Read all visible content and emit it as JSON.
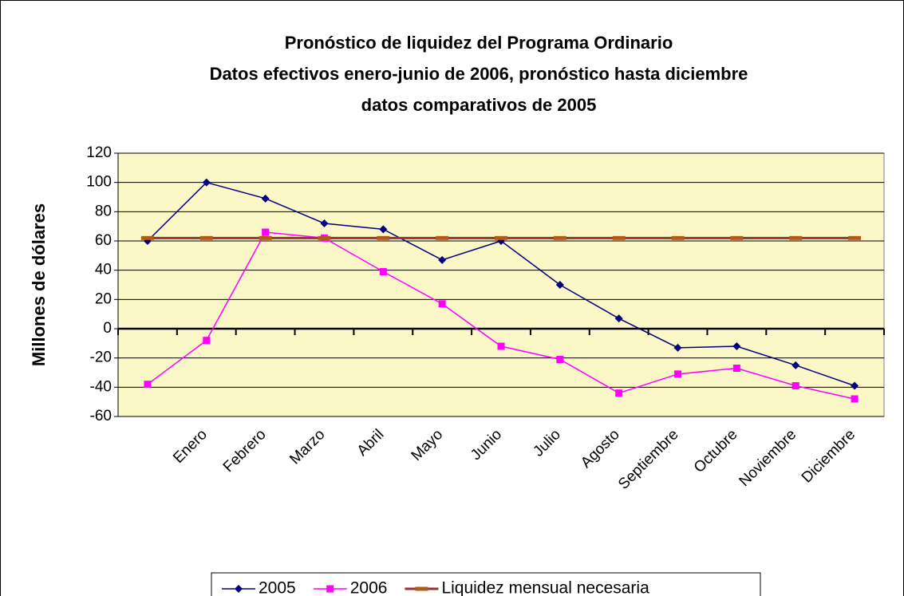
{
  "chart_data": {
    "type": "line",
    "title": [
      "Pronóstico de liquidez del Programa Ordinario",
      "Datos efectivos enero-junio de 2006, pronóstico hasta diciembre",
      "datos comparativos de 2005"
    ],
    "y_label": "Millones de dólares",
    "categories": [
      null,
      "Enero",
      "Febrero",
      "Marzo",
      "Abril",
      "Mayo",
      "Junio",
      "Julio",
      "Agosto",
      "Septiembre",
      "Octubre",
      "Noviembre",
      "Diciembre"
    ],
    "series": [
      {
        "name": "2005",
        "color": "#000080",
        "marker": "diamond",
        "values": [
          60,
          100,
          89,
          72,
          68,
          47,
          60,
          30,
          7,
          -13,
          -12,
          -25,
          -39
        ]
      },
      {
        "name": "2006",
        "color": "#ff00ff",
        "marker": "square",
        "values": [
          -38,
          -8,
          66,
          62,
          39,
          17,
          -12,
          -21,
          -44,
          -31,
          -27,
          -39,
          -48
        ]
      },
      {
        "name": "Liquidez mensual necesaria",
        "color": "#993333",
        "marker": "dash",
        "values": [
          62,
          62,
          62,
          62,
          62,
          62,
          62,
          62,
          62,
          62,
          62,
          62,
          62
        ]
      }
    ],
    "ylim": [
      -60,
      120
    ],
    "yticks": [
      -60,
      -40,
      -20,
      0,
      20,
      40,
      60,
      80,
      100,
      120
    ],
    "grid": true,
    "legend": "bottom"
  }
}
